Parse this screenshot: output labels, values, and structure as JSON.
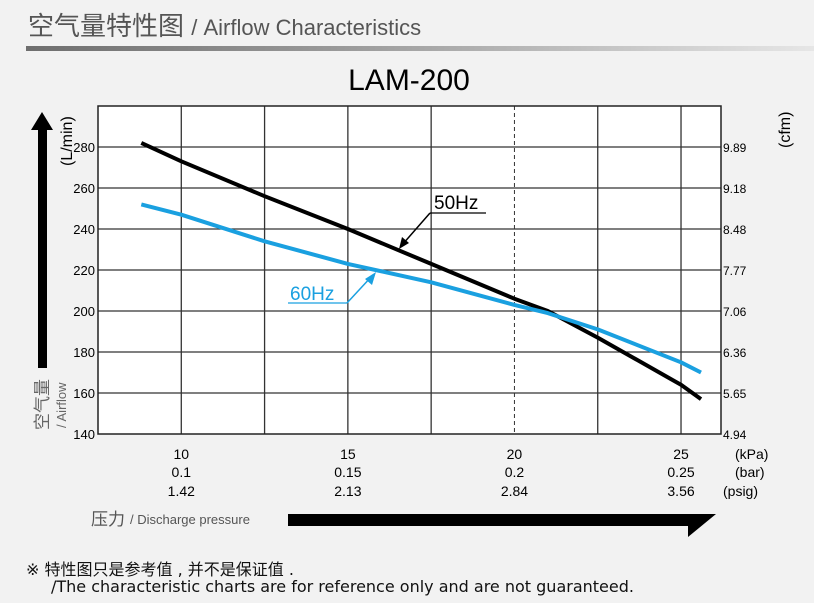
{
  "header": {
    "title_cn": "空气量特性图",
    "title_en": "/ Airflow Characteristics"
  },
  "colors": {
    "series_50hz": "#000000",
    "series_60hz": "#1aa0e0",
    "axis_label": "#666666"
  },
  "chart_data": {
    "type": "line",
    "title": "LAM-200",
    "xlabel_cn": "压力",
    "xlabel": "/ Discharge pressure",
    "ylabel_cn": "空气量",
    "ylabel": "/ Airflow",
    "yunit_left": "(L/min)",
    "yunit_right": "(cfm)",
    "xlim": [
      7.5,
      26.2
    ],
    "ylim": [
      140,
      300
    ],
    "grid": true,
    "x_ticks": [
      {
        "kpa": "10",
        "bar": "0.1",
        "psig": "1.42"
      },
      {
        "kpa": "15",
        "bar": "0.15",
        "psig": "2.13"
      },
      {
        "kpa": "20",
        "bar": "0.2",
        "psig": "2.84"
      },
      {
        "kpa": "25",
        "bar": "0.25",
        "psig": "3.56"
      }
    ],
    "x_units": [
      "(kPa)",
      "(bar)",
      "(psig)"
    ],
    "y_ticks_left": [
      "140",
      "160",
      "180",
      "200",
      "220",
      "240",
      "260",
      "280"
    ],
    "y_ticks_right": [
      "4.94",
      "5.65",
      "6.36",
      "7.06",
      "7.77",
      "8.48",
      "9.18",
      "9.89"
    ],
    "dashed_x": 20,
    "series": [
      {
        "name": "50Hz",
        "x": [
          8.8,
          10,
          12.5,
          15,
          17.5,
          20,
          21,
          22.5,
          25,
          25.6
        ],
        "y": [
          282,
          273,
          256,
          240,
          223,
          206,
          200,
          187,
          164,
          157
        ]
      },
      {
        "name": "60Hz",
        "x": [
          8.8,
          10,
          12.5,
          15,
          17.5,
          20,
          21,
          22.5,
          25,
          25.6
        ],
        "y": [
          252,
          247,
          234,
          223,
          214,
          203,
          199,
          191,
          175,
          170
        ]
      }
    ]
  },
  "footnote": {
    "cn": "※ 特性图只是参考值 , 并不是保证值 .",
    "en": "/The characteristic charts are for reference only and are not guaranteed."
  }
}
